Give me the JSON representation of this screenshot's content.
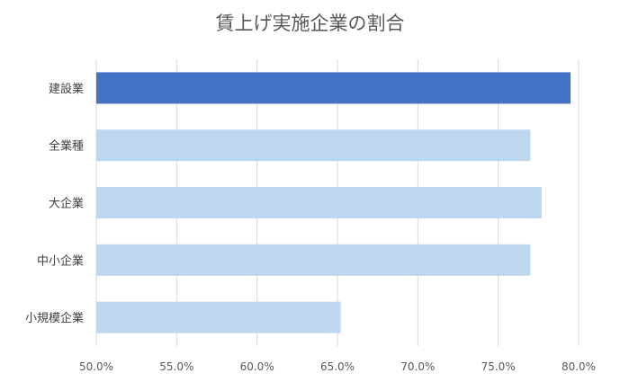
{
  "chart_data": {
    "type": "bar",
    "orientation": "horizontal",
    "title": "賃上げ実施企業の割合",
    "xlabel": "",
    "ylabel": "",
    "categories": [
      "建設業",
      "全業種",
      "大企業",
      "中小企業",
      "小規模企業"
    ],
    "values": [
      79.5,
      77.0,
      77.7,
      77.0,
      65.2
    ],
    "xlim": [
      50,
      80
    ],
    "ticks": [
      50,
      55,
      60,
      65,
      70,
      75,
      80
    ],
    "tick_labels": [
      "50.0%",
      "55.0%",
      "60.0%",
      "65.0%",
      "70.0%",
      "75.0%",
      "80.0%"
    ],
    "grid": true,
    "legend": "none",
    "colors": {
      "highlight": "#4472C4",
      "default": "#BDD7EE"
    },
    "highlight_category": "建設業"
  }
}
